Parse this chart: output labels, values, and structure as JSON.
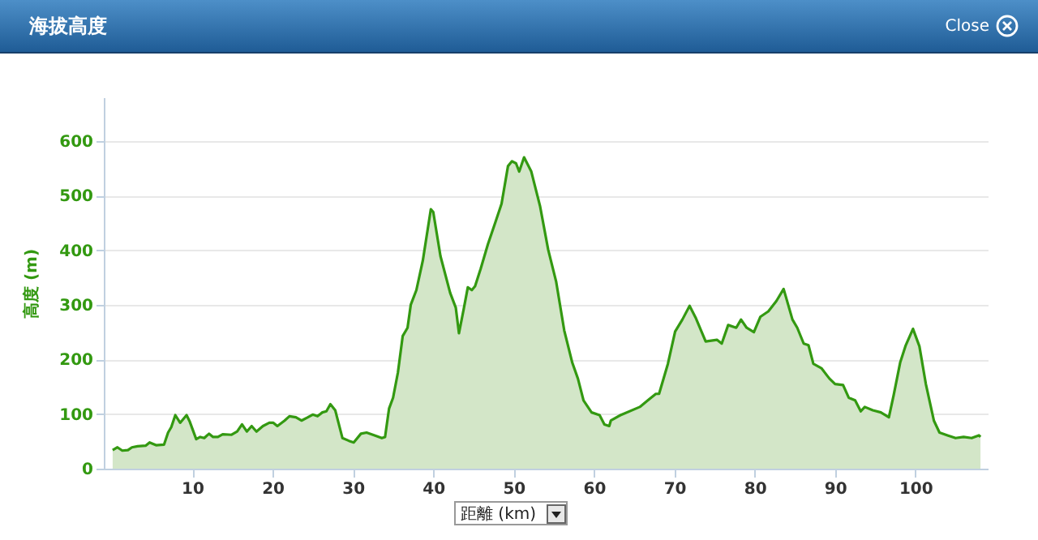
{
  "chart_data": {
    "type": "area",
    "title": "海拔高度",
    "xlabel": "距離 (km)",
    "ylabel": "高度 (m)",
    "annotations": [
      "Close"
    ],
    "x": [
      0.1,
      0.7,
      1.3,
      2,
      2.5,
      3.2,
      4.2,
      4.7,
      5.5,
      6.5,
      7,
      7.4,
      7.9,
      8.5,
      9.3,
      9.7,
      10.5,
      11,
      11.5,
      12.1,
      12.6,
      13.2,
      13.8,
      14.9,
      15.6,
      16.2,
      16.8,
      17.4,
      18,
      18.8,
      19.6,
      20.1,
      20.6,
      21.5,
      22.1,
      22.9,
      23.6,
      24.4,
      25,
      25.6,
      26.2,
      26.7,
      27.2,
      27.8,
      28.7,
      29.5,
      30.1,
      31,
      31.7,
      32.7,
      33.6,
      34,
      34.5,
      35,
      35.6,
      36.2,
      36.8,
      37.2,
      37.9,
      38.7,
      39.7,
      40,
      40.9,
      42.1,
      42.8,
      43.2,
      43.8,
      44.3,
      44.8,
      45.2,
      45.9,
      46.8,
      47.7,
      48.5,
      49.3,
      49.8,
      50.3,
      50.7,
      51.3,
      52.2,
      53.3,
      54.3,
      55.3,
      56.3,
      57.3,
      58,
      58.7,
      59.7,
      60.7,
      61.3,
      61.9,
      62.1,
      63.3,
      65.7,
      66.7,
      67.7,
      68.1,
      69.2,
      70.1,
      71,
      71.9,
      72.7,
      73.9,
      75.3,
      75.9,
      76.7,
      77.7,
      78.3,
      79,
      79.9,
      80.7,
      81.7,
      82.7,
      83.6,
      84.7,
      85.3,
      86.1,
      86.7,
      87.3,
      88.3,
      89.3,
      90,
      91,
      91.7,
      92.5,
      93.2,
      93.7,
      94.7,
      95.7,
      96.7,
      97.3,
      98.1,
      98.8,
      99.7,
      100.5,
      101.3,
      102.3,
      103,
      104,
      105,
      106,
      107,
      107.9,
      108.1
    ],
    "values": [
      34,
      39,
      33,
      34,
      39,
      41,
      42,
      48,
      43,
      44,
      66,
      76,
      98,
      84,
      98,
      86,
      54,
      58,
      56,
      64,
      58,
      58,
      63,
      62,
      68,
      81,
      68,
      78,
      68,
      78,
      84,
      84,
      78,
      88,
      96,
      94,
      88,
      94,
      99,
      96,
      103,
      105,
      118,
      107,
      56,
      51,
      48,
      64,
      66,
      61,
      56,
      58,
      110,
      130,
      176,
      243,
      258,
      300,
      327,
      381,
      475,
      470,
      389,
      322,
      295,
      248,
      293,
      332,
      327,
      334,
      366,
      411,
      450,
      485,
      554,
      563,
      559,
      544,
      570,
      544,
      480,
      401,
      342,
      253,
      194,
      165,
      125,
      103,
      98,
      81,
      78,
      88,
      98,
      113,
      125,
      137,
      137,
      192,
      251,
      273,
      298,
      275,
      233,
      236,
      229,
      263,
      258,
      273,
      258,
      250,
      278,
      288,
      307,
      329,
      273,
      258,
      229,
      226,
      192,
      184,
      165,
      155,
      153,
      130,
      125,
      105,
      113,
      107,
      103,
      94,
      135,
      194,
      226,
      256,
      224,
      155,
      88,
      66,
      61,
      56,
      58,
      56,
      61,
      58
    ],
    "color": "#339911",
    "xlim": [
      -1,
      109
    ],
    "ylim": [
      0,
      680
    ],
    "xticks": [
      10,
      20,
      30,
      40,
      50,
      60,
      70,
      80,
      90,
      100
    ],
    "yticks": [
      0,
      100,
      200,
      300,
      400,
      500,
      600
    ],
    "grid": "y"
  }
}
